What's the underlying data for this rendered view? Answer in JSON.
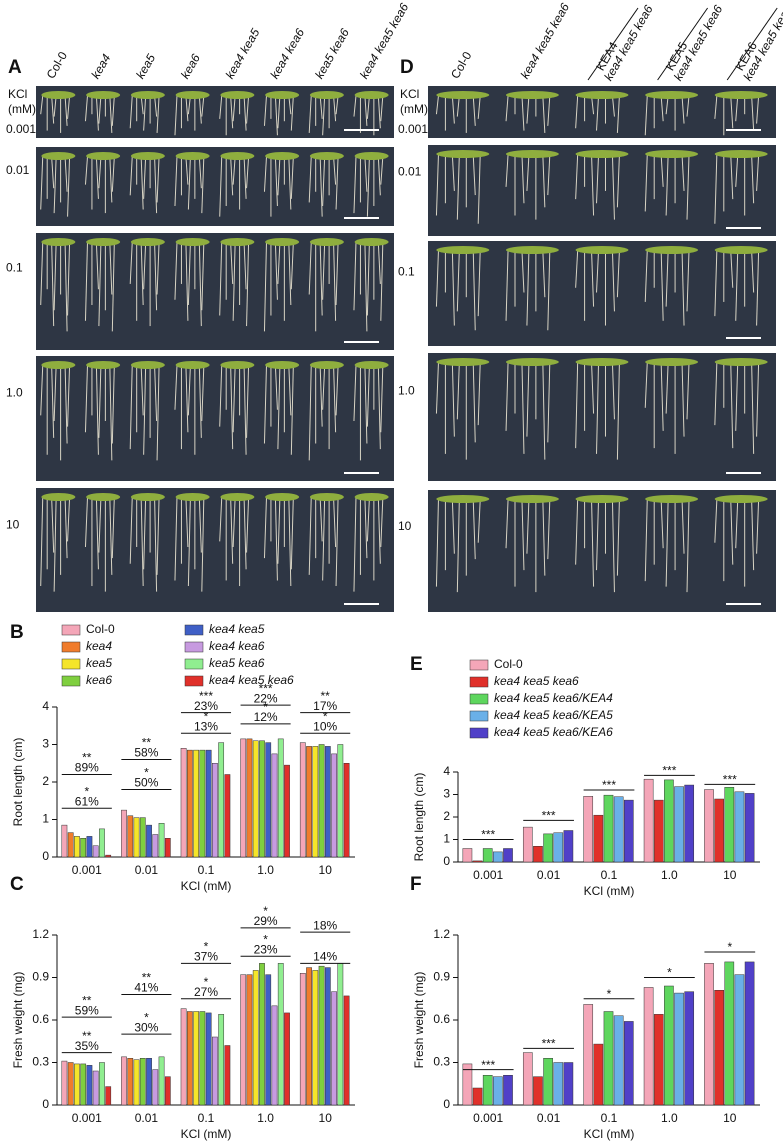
{
  "panels": [
    {
      "label": "A",
      "genotypes": [
        "Col-0",
        "kea4",
        "kea5",
        "kea6",
        "kea4 kea5",
        "kea4 kea6",
        "kea5 kea6",
        "kea4 kea5 kea6"
      ],
      "kcl_label": [
        "KCl",
        "(mM)"
      ],
      "concentrations": [
        "0.001",
        "0.01",
        "0.1",
        "1.0",
        "10"
      ]
    },
    {
      "label": "D",
      "genotypes": [
        {
          "top": "Col-0"
        },
        {
          "top": "kea4 kea5 kea6"
        },
        {
          "top": "KEA4",
          "bottom": "kea4 kea5 kea6"
        },
        {
          "top": "KEA5",
          "bottom": "kea4 kea5 kea6"
        },
        {
          "top": "KEA6",
          "bottom": "kea4 kea5 kea6"
        }
      ],
      "kcl_label": [
        "KCl",
        "(mM)"
      ],
      "concentrations": [
        "0.001",
        "0.01",
        "0.1",
        "1.0",
        "10"
      ]
    }
  ],
  "chart_data": [
    {
      "type": "bar",
      "panel": "B",
      "ylabel": "Root length (cm)",
      "xlabel": "KCl (mM)",
      "categories": [
        "0.001",
        "0.01",
        "0.1",
        "1.0",
        "10"
      ],
      "ylim": [
        0,
        4
      ],
      "yticks": [
        0,
        1,
        2,
        3,
        4
      ],
      "series": [
        {
          "name": "Col-0",
          "color": "#f4a6b8",
          "values": [
            0.85,
            1.25,
            2.9,
            3.15,
            3.05
          ]
        },
        {
          "name": "kea4",
          "color": "#f07c2c",
          "values": [
            0.65,
            1.1,
            2.85,
            3.15,
            2.95
          ]
        },
        {
          "name": "kea5",
          "color": "#f5e52a",
          "values": [
            0.55,
            1.05,
            2.85,
            3.1,
            2.95
          ]
        },
        {
          "name": "kea6",
          "color": "#7fcf3f",
          "values": [
            0.5,
            1.05,
            2.85,
            3.1,
            3.0
          ]
        },
        {
          "name": "kea4 kea5",
          "color": "#3f5fc6",
          "values": [
            0.55,
            0.85,
            2.85,
            3.05,
            2.95
          ]
        },
        {
          "name": "kea4 kea6",
          "color": "#c79ae0",
          "values": [
            0.3,
            0.6,
            2.5,
            2.75,
            2.75
          ]
        },
        {
          "name": "kea5 kea6",
          "color": "#90ee90",
          "values": [
            0.75,
            0.9,
            3.05,
            3.15,
            3.0
          ]
        },
        {
          "name": "kea4 kea5 kea6",
          "color": "#e0302a",
          "values": [
            0.05,
            0.5,
            2.2,
            2.45,
            2.5
          ]
        }
      ],
      "annotations": [
        {
          "category": "0.001",
          "y": 2.2,
          "stars": "**",
          "percent": "89%"
        },
        {
          "category": "0.001",
          "y": 1.3,
          "stars": "*",
          "percent": "61%"
        },
        {
          "category": "0.01",
          "y": 2.6,
          "stars": "**",
          "percent": "58%"
        },
        {
          "category": "0.01",
          "y": 1.8,
          "stars": "*",
          "percent": "50%"
        },
        {
          "category": "0.1",
          "y": 3.85,
          "stars": "***",
          "percent": "23%"
        },
        {
          "category": "0.1",
          "y": 3.3,
          "stars": "*",
          "percent": "13%"
        },
        {
          "category": "1.0",
          "y": 4.05,
          "stars": "***",
          "percent": "22%"
        },
        {
          "category": "1.0",
          "y": 3.55,
          "stars": "*",
          "percent": "12%"
        },
        {
          "category": "10",
          "y": 3.85,
          "stars": "**",
          "percent": "17%"
        },
        {
          "category": "10",
          "y": 3.3,
          "stars": "*",
          "percent": "10%"
        }
      ]
    },
    {
      "type": "bar",
      "panel": "C",
      "ylabel": "Fresh weight  (mg)",
      "xlabel": "KCl (mM)",
      "categories": [
        "0.001",
        "0.01",
        "0.1",
        "1.0",
        "10"
      ],
      "ylim": [
        0,
        1.2
      ],
      "yticks": [
        0,
        0.3,
        0.6,
        0.9,
        1.2
      ],
      "series": [
        {
          "name": "Col-0",
          "color": "#f4a6b8",
          "values": [
            0.31,
            0.34,
            0.68,
            0.92,
            0.93
          ]
        },
        {
          "name": "kea4",
          "color": "#f07c2c",
          "values": [
            0.3,
            0.33,
            0.66,
            0.92,
            0.97
          ]
        },
        {
          "name": "kea5",
          "color": "#f5e52a",
          "values": [
            0.29,
            0.32,
            0.66,
            0.95,
            0.95
          ]
        },
        {
          "name": "kea6",
          "color": "#7fcf3f",
          "values": [
            0.29,
            0.33,
            0.66,
            1.0,
            0.98
          ]
        },
        {
          "name": "kea4 kea5",
          "color": "#3f5fc6",
          "values": [
            0.28,
            0.33,
            0.65,
            0.92,
            0.97
          ]
        },
        {
          "name": "kea4 kea6",
          "color": "#c79ae0",
          "values": [
            0.24,
            0.25,
            0.48,
            0.7,
            0.8
          ]
        },
        {
          "name": "kea5 kea6",
          "color": "#90ee90",
          "values": [
            0.3,
            0.34,
            0.64,
            1.0,
            1.0
          ]
        },
        {
          "name": "kea4 kea5 kea6",
          "color": "#e0302a",
          "values": [
            0.13,
            0.2,
            0.42,
            0.65,
            0.77
          ]
        }
      ],
      "annotations": [
        {
          "category": "0.001",
          "y": 0.62,
          "stars": "**",
          "percent": "59%"
        },
        {
          "category": "0.001",
          "y": 0.37,
          "stars": "**",
          "percent": "35%"
        },
        {
          "category": "0.01",
          "y": 0.78,
          "stars": "**",
          "percent": "41%"
        },
        {
          "category": "0.01",
          "y": 0.5,
          "stars": "*",
          "percent": "30%"
        },
        {
          "category": "0.1",
          "y": 1.0,
          "stars": "*",
          "percent": "37%"
        },
        {
          "category": "0.1",
          "y": 0.75,
          "stars": "*",
          "percent": "27%"
        },
        {
          "category": "1.0",
          "y": 1.25,
          "stars": "*",
          "percent": "29%"
        },
        {
          "category": "1.0",
          "y": 1.05,
          "stars": "*",
          "percent": "23%"
        },
        {
          "category": "10",
          "y": 1.22,
          "percent": "18%"
        },
        {
          "category": "10",
          "y": 1.0,
          "percent": "14%"
        }
      ]
    },
    {
      "type": "bar",
      "panel": "E",
      "ylabel": "Root length (cm)",
      "xlabel": "KCl (mM)",
      "categories": [
        "0.001",
        "0.01",
        "0.1",
        "1.0",
        "10"
      ],
      "ylim": [
        0,
        4
      ],
      "yticks": [
        0,
        1,
        2,
        3,
        4
      ],
      "series": [
        {
          "name": "Col-0",
          "color": "#f4a6b8",
          "values": [
            0.6,
            1.55,
            2.92,
            3.68,
            3.22
          ]
        },
        {
          "name": "kea4 kea5 kea6",
          "color": "#e0302a",
          "values": [
            0.05,
            0.7,
            2.08,
            2.75,
            2.8
          ]
        },
        {
          "name": "kea4 kea5 kea6/KEA4",
          "color": "#5ed65e",
          "values": [
            0.6,
            1.25,
            2.97,
            3.65,
            3.32
          ]
        },
        {
          "name": "kea4 kea5 kea6/KEA5",
          "color": "#6ab0e8",
          "values": [
            0.45,
            1.3,
            2.9,
            3.35,
            3.12
          ]
        },
        {
          "name": "kea4 kea5 kea6/KEA6",
          "color": "#5040c8",
          "values": [
            0.6,
            1.4,
            2.75,
            3.42,
            3.05
          ]
        }
      ],
      "annotations": [
        {
          "category": "0.001",
          "y": 1.0,
          "stars": "***"
        },
        {
          "category": "0.01",
          "y": 1.85,
          "stars": "***"
        },
        {
          "category": "0.1",
          "y": 3.2,
          "stars": "***"
        },
        {
          "category": "1.0",
          "y": 3.85,
          "stars": "***"
        },
        {
          "category": "10",
          "y": 3.45,
          "stars": "***"
        }
      ]
    },
    {
      "type": "bar",
      "panel": "F",
      "ylabel": "Fresh weight  (mg)",
      "xlabel": "KCl (mM)",
      "categories": [
        "0.001",
        "0.01",
        "0.1",
        "1.0",
        "10"
      ],
      "ylim": [
        0,
        1.2
      ],
      "yticks": [
        0,
        0.3,
        0.6,
        0.9,
        1.2
      ],
      "series": [
        {
          "name": "Col-0",
          "color": "#f4a6b8",
          "values": [
            0.29,
            0.37,
            0.71,
            0.83,
            1.0
          ]
        },
        {
          "name": "kea4 kea5 kea6",
          "color": "#e0302a",
          "values": [
            0.12,
            0.2,
            0.43,
            0.64,
            0.81
          ]
        },
        {
          "name": "kea4 kea5 kea6/KEA4",
          "color": "#5ed65e",
          "values": [
            0.21,
            0.33,
            0.66,
            0.84,
            1.01
          ]
        },
        {
          "name": "kea4 kea5 kea6/KEA5",
          "color": "#6ab0e8",
          "values": [
            0.2,
            0.3,
            0.63,
            0.79,
            0.92
          ]
        },
        {
          "name": "kea4 kea5 kea6/KEA6",
          "color": "#5040c8",
          "values": [
            0.21,
            0.3,
            0.59,
            0.8,
            1.01
          ]
        }
      ],
      "annotations": [
        {
          "category": "0.001",
          "y": 0.25,
          "stars": "***"
        },
        {
          "category": "0.01",
          "y": 0.4,
          "stars": "***"
        },
        {
          "category": "0.1",
          "y": 0.75,
          "stars": "*"
        },
        {
          "category": "1.0",
          "y": 0.9,
          "stars": "*"
        },
        {
          "category": "10",
          "y": 1.08,
          "stars": "*"
        }
      ]
    }
  ]
}
